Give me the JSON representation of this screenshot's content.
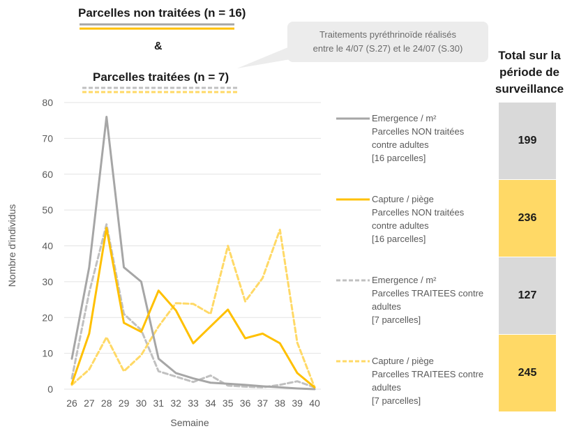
{
  "header": {
    "untreated_title": "Parcelles non traitées (n = 16)",
    "ampersand": "&",
    "treated_title": "Parcelles traitées (n = 7)"
  },
  "callout": {
    "line1": "Traitements pyréthrinoïde réalisés",
    "line2": "entre le 4/07 (S.27) et le 24/07 (S.30)"
  },
  "totals": {
    "title_lines": [
      "Total sur la",
      "période de",
      "surveillance"
    ],
    "values": [
      {
        "value": "199",
        "color": "#d9d9d9"
      },
      {
        "value": "236",
        "color": "#ffd966"
      },
      {
        "value": "127",
        "color": "#d9d9d9"
      },
      {
        "value": "245",
        "color": "#ffd966"
      }
    ]
  },
  "legend": [
    {
      "lines": [
        "Emergence / m²",
        "Parcelles NON traitées",
        "contre adultes",
        "[16 parcelles]"
      ],
      "color": "#a6a6a6",
      "dashed": false
    },
    {
      "lines": [
        "Capture / piège",
        "Parcelles NON traitées",
        "contre adultes",
        "[16 parcelles]"
      ],
      "color": "#ffc000",
      "dashed": false
    },
    {
      "lines": [
        "Emergence / m²",
        "Parcelles TRAITEES contre",
        "adultes",
        "[7 parcelles]"
      ],
      "color": "#c0c0c0",
      "dashed": true
    },
    {
      "lines": [
        "Capture / piège",
        "Parcelles TRAITEES contre",
        "adultes",
        "[7 parcelles]"
      ],
      "color": "#ffd966",
      "dashed": true
    }
  ],
  "chart_data": {
    "type": "line",
    "xlabel": "Semaine",
    "ylabel": "Nombre d'individus",
    "ylim": [
      0,
      80
    ],
    "yticks": [
      0,
      10,
      20,
      30,
      40,
      50,
      60,
      70,
      80
    ],
    "x": [
      26,
      27,
      28,
      29,
      30,
      31,
      32,
      33,
      34,
      35,
      36,
      37,
      38,
      39,
      40
    ],
    "grid": true,
    "series": [
      {
        "name": "Emergence / m² Parcelles NON traitées contre adultes [16 parcelles]",
        "color": "#a6a6a6",
        "dashed": false,
        "values": [
          8.5,
          34,
          76,
          34,
          30,
          8.5,
          4.5,
          3,
          1.8,
          1.5,
          1.2,
          0.8,
          0.5,
          0.2,
          0
        ]
      },
      {
        "name": "Capture / piège Parcelles NON traitées contre adultes [16 parcelles]",
        "color": "#ffc000",
        "dashed": false,
        "values": [
          1.5,
          15.5,
          45,
          18.5,
          16,
          27.5,
          22,
          12.8,
          17.5,
          22.2,
          14.2,
          15.5,
          12.8,
          4.5,
          0.5
        ]
      },
      {
        "name": "Emergence / m² Parcelles TRAITEES contre adultes [7 parcelles]",
        "color": "#c0c0c0",
        "dashed": true,
        "values": [
          3,
          27,
          46,
          21,
          16.5,
          5,
          3.5,
          2,
          3.8,
          1,
          0.7,
          0.5,
          1.2,
          2.2,
          0.5
        ]
      },
      {
        "name": "Capture / piège Parcelles TRAITEES contre adultes [7 parcelles]",
        "color": "#ffd966",
        "dashed": true,
        "values": [
          1.2,
          5.5,
          14.5,
          5,
          9.5,
          17.5,
          24,
          23.8,
          21,
          40,
          24.5,
          31,
          44.5,
          13,
          0.5
        ]
      }
    ]
  }
}
